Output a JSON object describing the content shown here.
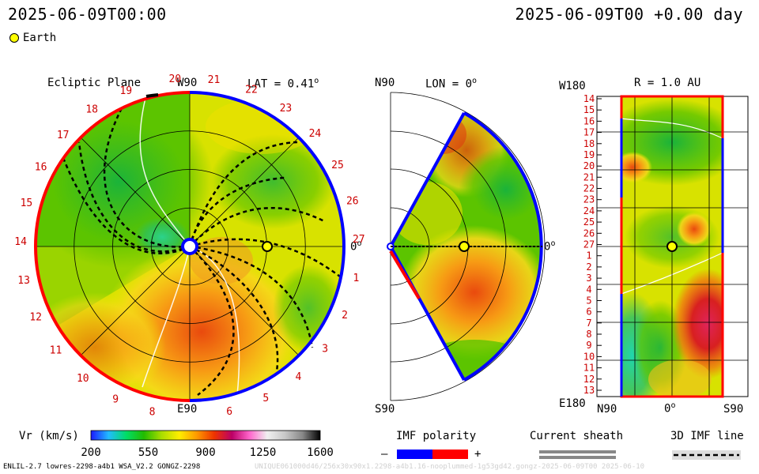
{
  "header": {
    "left_time": "2025-06-09T00:00",
    "right_time": "2025-06-09T00 +0.00 day"
  },
  "legend_top": {
    "earth_label": "Earth"
  },
  "panels": {
    "ecliptic": {
      "title": "Ecliptic Plane",
      "top_label": "W90",
      "bottom_label": "E90",
      "lat_label": "LAT = 0.41",
      "lat_sup": "o",
      "zero_label": "0",
      "zero_sup": "o",
      "car_labels": [
        "20",
        "21",
        "22",
        "23",
        "24",
        "25",
        "26",
        "27",
        "1",
        "2",
        "3",
        "4",
        "5",
        "6",
        "8",
        "9",
        "10",
        "11",
        "12",
        "13",
        "14",
        "15",
        "16",
        "17",
        "18",
        "19"
      ]
    },
    "meridional": {
      "top_label": "N90",
      "bottom_label": "S90",
      "lon_label": "LON = 0",
      "lon_sup": "o",
      "zero_label": "0",
      "zero_sup": "o"
    },
    "radial": {
      "top_label": "W180",
      "bottom_label": "E180",
      "r_label": "R = 1.0 AU",
      "x_left": "N90",
      "x_mid": "0",
      "x_mid_sup": "o",
      "x_right": "S90",
      "y_labels": [
        "14",
        "15",
        "16",
        "17",
        "18",
        "19",
        "20",
        "21",
        "22",
        "23",
        "24",
        "25",
        "26",
        "27",
        "1",
        "2",
        "3",
        "4",
        "5",
        "6",
        "7",
        "8",
        "9",
        "10",
        "11",
        "12",
        "13"
      ]
    }
  },
  "colorbar": {
    "title": "Vr (km/s)",
    "ticks": [
      "200",
      "550",
      "900",
      "1250",
      "1600"
    ],
    "stops": [
      "#1a1aff",
      "#22bbff",
      "#00dd66",
      "#22bb00",
      "#aadd00",
      "#ffee00",
      "#ff9900",
      "#ee3300",
      "#bb0066",
      "#ff66cc",
      "#f0f0f0",
      "#c8c8c8",
      "#888888",
      "#000000"
    ]
  },
  "imf_legend": {
    "title": "IMF polarity",
    "minus": "–",
    "plus": "+",
    "neg_color": "#0000ff",
    "pos_color": "#ff0000"
  },
  "sheath_legend": {
    "title": "Current sheath"
  },
  "imf_line_legend": {
    "title": "3D IMF line"
  },
  "footer": {
    "left": "ENLIL-2.7 lowres-2298-a4b1 WSA_V2.2 GONGZ-2298",
    "right": "UNIQUE061000d46/256x30x90x1.2298-a4b1.16-nooplummed-1g53gd42.gongz-2025-06-09T00   2025-06-10"
  },
  "colors": {
    "positive": "#ff0000",
    "negative": "#0000ff",
    "label_red": "#cc0000",
    "field_green": "#4cbb17",
    "field_yellow": "#e6e600",
    "field_orange": "#f09010",
    "field_red": "#dd2a10",
    "field_teal": "#22c9a0"
  }
}
